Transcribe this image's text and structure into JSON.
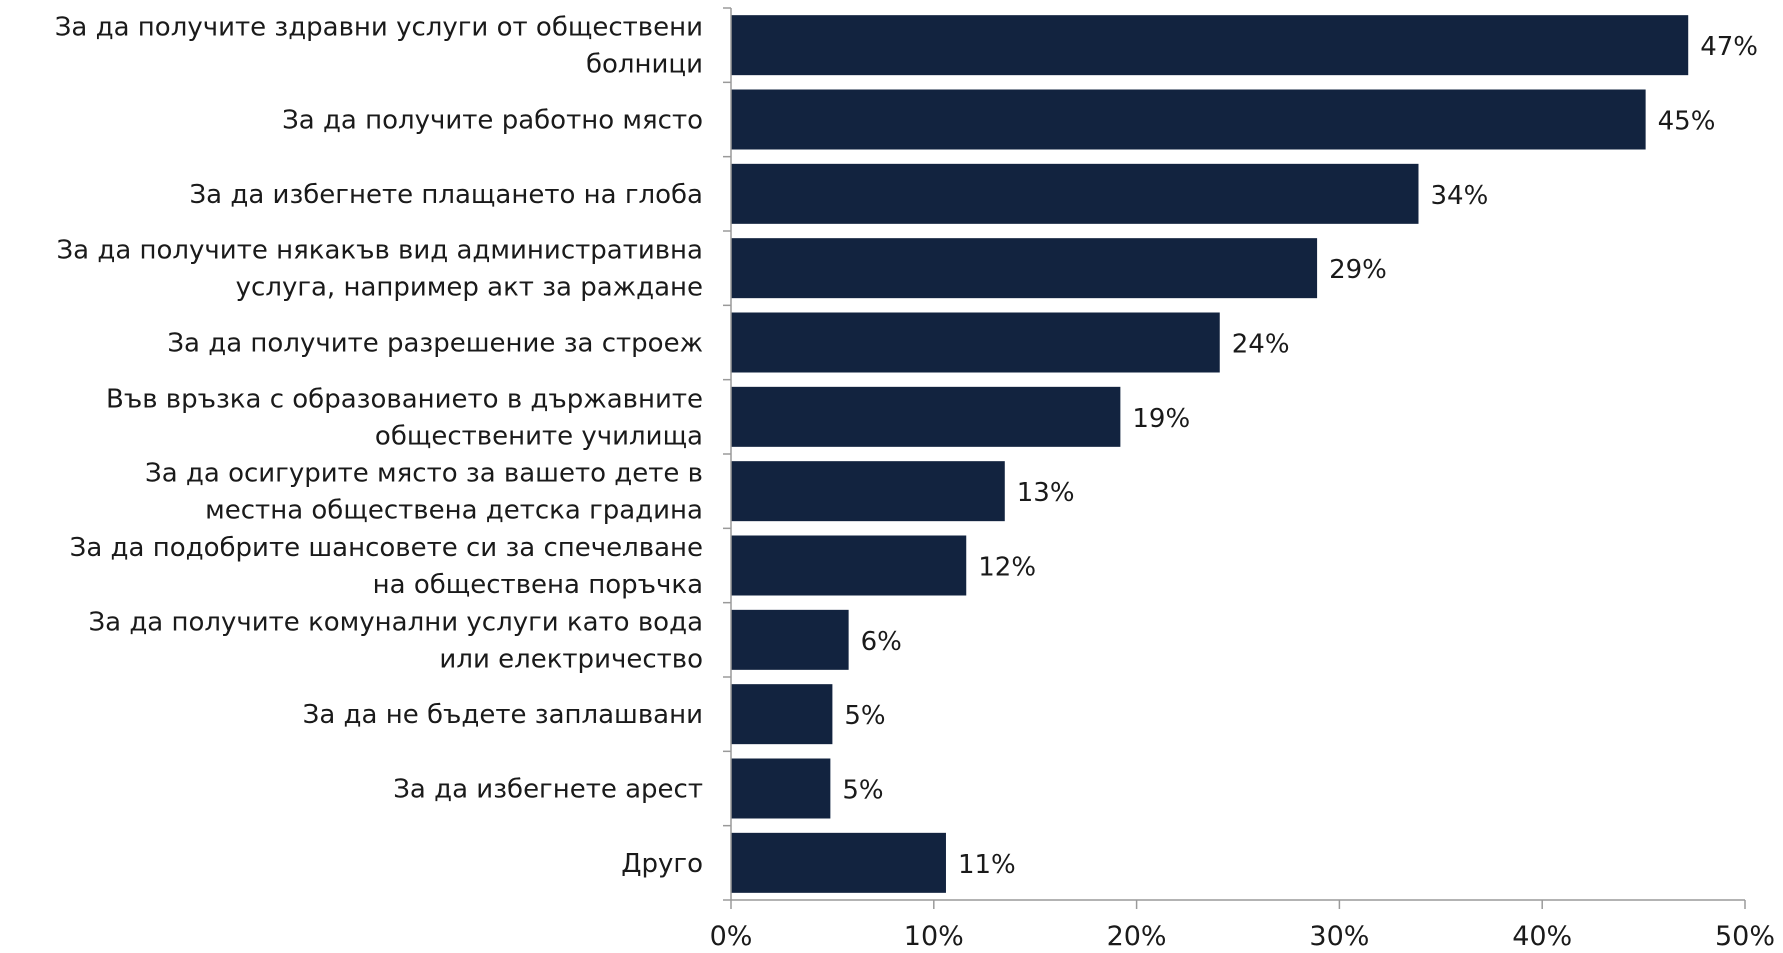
{
  "chart_data": {
    "type": "bar",
    "orientation": "horizontal",
    "categories": [
      [
        "За да получите здравни услуги от обществени",
        "болници"
      ],
      [
        "За да получите работно място"
      ],
      [
        "За да избегнете плащането на глоба"
      ],
      [
        "За да получите някакъв вид административна",
        "услуга, например акт за раждане"
      ],
      [
        "За да получите разрешение за строеж"
      ],
      [
        "Във връзка с образованието в държавните",
        "обществените училища"
      ],
      [
        "За да осигурите място за вашето дете в",
        "местна обществена детска градина"
      ],
      [
        "За да подобрите шансовете си за спечелване",
        "на обществена поръчка"
      ],
      [
        "За да получите комунални услуги като вода",
        "или електричество"
      ],
      [
        "За да не бъдете заплашвани"
      ],
      [
        "За да избегнете арест"
      ],
      [
        "Друго"
      ]
    ],
    "values": [
      47,
      45,
      34,
      29,
      24,
      19,
      13,
      12,
      6,
      5,
      5,
      11
    ],
    "value_labels": [
      "47%",
      "45%",
      "34%",
      "29%",
      "24%",
      "19%",
      "13%",
      "12%",
      "6%",
      "5%",
      "5%",
      "11%"
    ],
    "exact_values": [
      47.2,
      45.1,
      33.9,
      28.9,
      24.1,
      19.2,
      13.5,
      11.6,
      5.8,
      5.0,
      4.9,
      10.6
    ],
    "x_ticks": [
      "0%",
      "10%",
      "20%",
      "30%",
      "40%",
      "50%"
    ],
    "xlim": [
      0,
      50
    ],
    "grid": false,
    "bar_color": "#12233f",
    "title": "",
    "xlabel": "",
    "ylabel": ""
  }
}
